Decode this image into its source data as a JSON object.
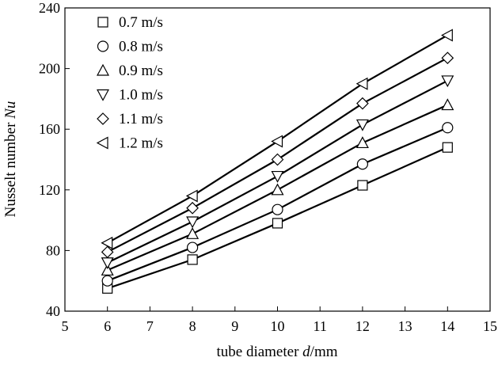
{
  "chart_data": {
    "type": "line",
    "title": "",
    "xlabel": {
      "prefix": "tube diameter ",
      "var": "d",
      "suffix": "/mm"
    },
    "ylabel": {
      "prefix": "Nusselt number ",
      "var": "Nu"
    },
    "xlim": [
      5,
      15
    ],
    "ylim": [
      40,
      240
    ],
    "xticks": [
      5,
      6,
      7,
      8,
      9,
      10,
      11,
      12,
      13,
      14,
      15
    ],
    "yticks": [
      40,
      80,
      120,
      160,
      200,
      240
    ],
    "grid": false,
    "legend_position": "top-left",
    "x": [
      6,
      8,
      10,
      12,
      14
    ],
    "series": [
      {
        "name": "0.7 m/s",
        "marker": "square",
        "values": [
          55,
          74,
          98,
          123,
          148
        ]
      },
      {
        "name": "0.8 m/s",
        "marker": "circle",
        "values": [
          60,
          82,
          107,
          137,
          161
        ]
      },
      {
        "name": "0.9 m/s",
        "marker": "triangle-up",
        "values": [
          67,
          91,
          120,
          151,
          176
        ]
      },
      {
        "name": "1.0 m/s",
        "marker": "triangle-down",
        "values": [
          72,
          99,
          129,
          163,
          192
        ]
      },
      {
        "name": "1.1 m/s",
        "marker": "diamond",
        "values": [
          79,
          108,
          140,
          177,
          207
        ]
      },
      {
        "name": "1.2 m/s",
        "marker": "triangle-left",
        "values": [
          85,
          116,
          152,
          190,
          222
        ]
      }
    ]
  }
}
